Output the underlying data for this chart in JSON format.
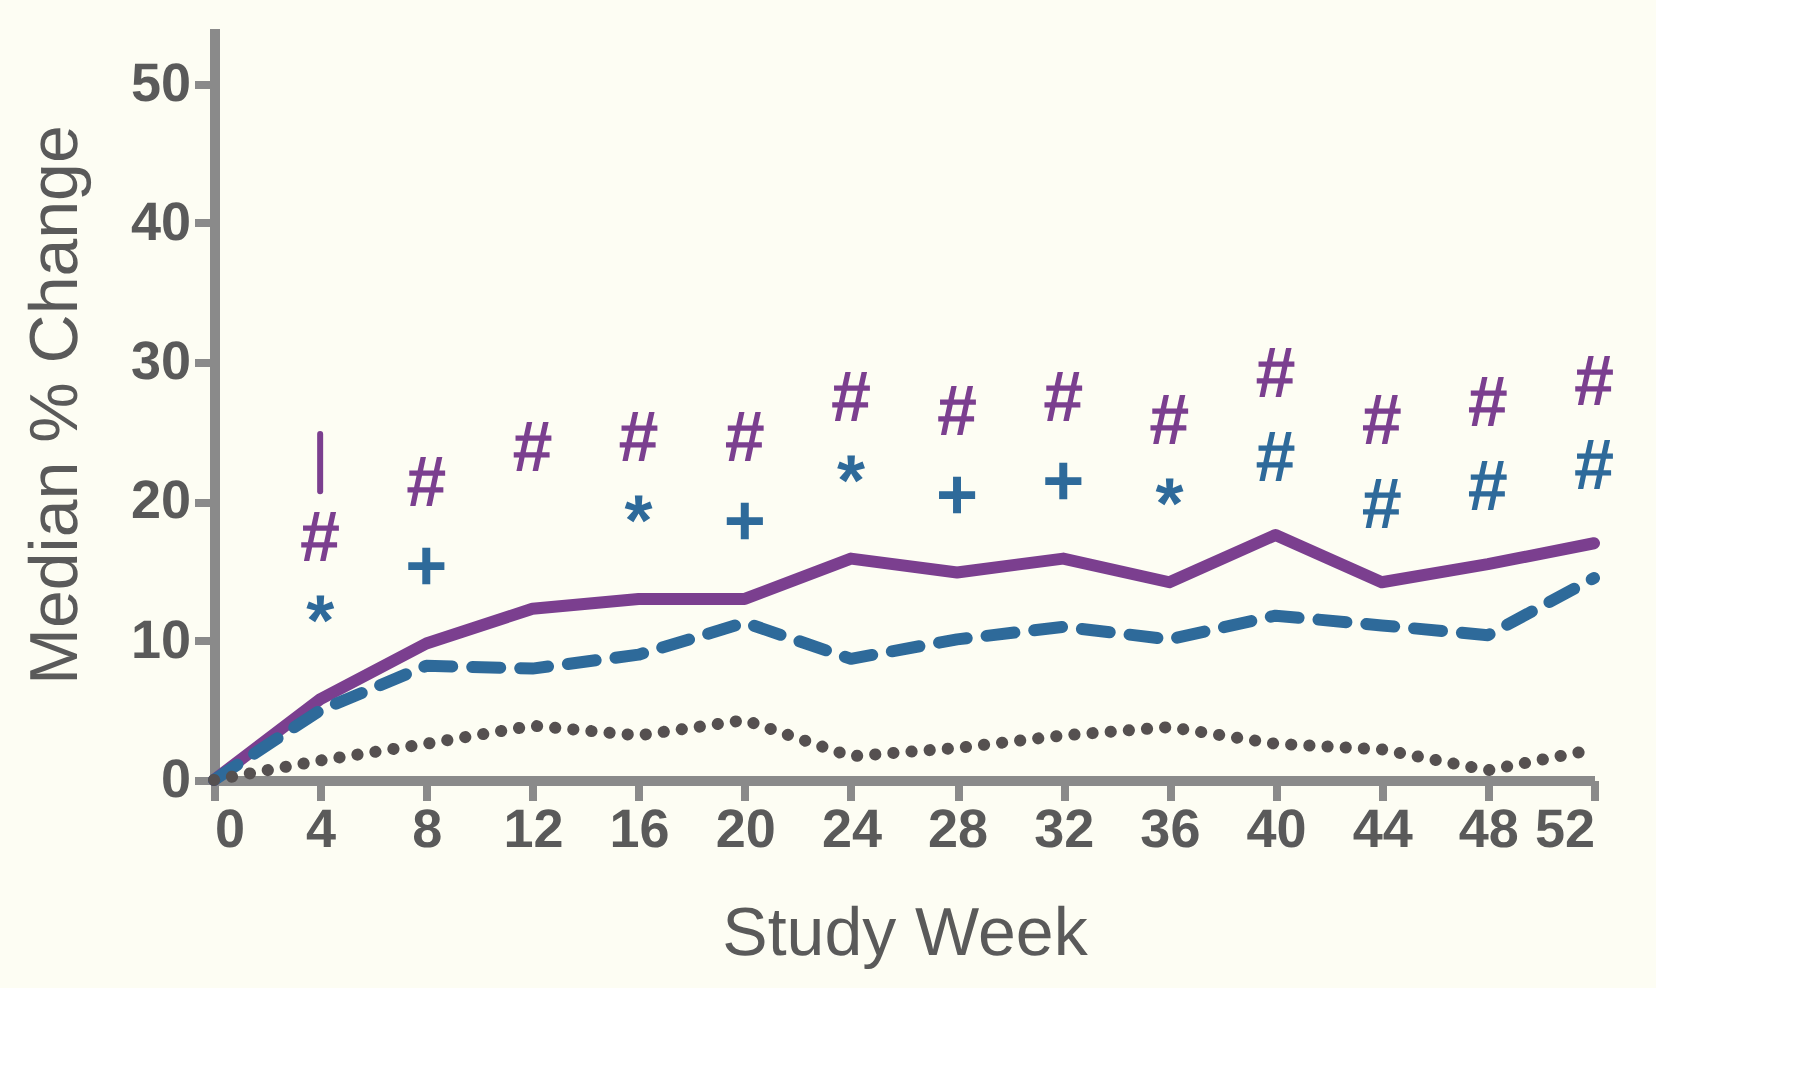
{
  "chart_data": {
    "type": "line",
    "xlabel": "Study Week",
    "ylabel": "Median % Change",
    "x": [
      0,
      4,
      8,
      12,
      16,
      20,
      24,
      28,
      32,
      36,
      40,
      44,
      48,
      52
    ],
    "xlim": [
      0,
      52
    ],
    "xticks": [
      0,
      4,
      8,
      12,
      16,
      20,
      24,
      28,
      32,
      36,
      40,
      44,
      48,
      52
    ],
    "ylim": [
      0,
      54
    ],
    "yticks": [
      0,
      10,
      20,
      30,
      40,
      50
    ],
    "grid": false,
    "legend": false,
    "marker": "none",
    "series": [
      {
        "color": "#7b3f8f",
        "line_style": "solid",
        "values": [
          0,
          5.8,
          9.8,
          12.3,
          13,
          13,
          15.9,
          14.9,
          15.9,
          14.2,
          17.6,
          14.2,
          15.5,
          17
        ]
      },
      {
        "color": "#2e6a9a",
        "line_style": "dashed",
        "values": [
          0,
          5,
          8.2,
          8,
          9,
          11.3,
          8.7,
          10.1,
          11,
          10.1,
          11.8,
          11.1,
          10.4,
          14.5
        ]
      },
      {
        "color": "#555050",
        "line_style": "dotted",
        "values": [
          0,
          1.4,
          2.6,
          3.9,
          3.2,
          4.3,
          1.7,
          2.3,
          3.2,
          3.8,
          2.6,
          2.2,
          0.7,
          2.2
        ]
      }
    ],
    "annotations": [
      {
        "text": "#",
        "x": 4,
        "y": 5.8
      },
      {
        "text": "#",
        "x": 8,
        "y": 9.8
      },
      {
        "text": "#",
        "x": 12,
        "y": 12.3
      },
      {
        "text": "#",
        "x": 16,
        "y": 13
      },
      {
        "text": "#",
        "x": 20,
        "y": 13
      },
      {
        "text": "#",
        "x": 24,
        "y": 15.9
      },
      {
        "text": "#",
        "x": 28,
        "y": 14.9
      },
      {
        "text": "#",
        "x": 32,
        "y": 15.9
      },
      {
        "text": "#",
        "x": 36,
        "y": 14.2
      },
      {
        "text": "#",
        "x": 40,
        "y": 17.6
      },
      {
        "text": "#",
        "x": 44,
        "y": 14.2
      },
      {
        "text": "#",
        "x": 48,
        "y": 15.5
      },
      {
        "text": "#",
        "x": 52,
        "y": 17
      },
      {
        "text": "#",
        "x": 40,
        "y": 11.8
      },
      {
        "text": "#",
        "x": 44,
        "y": 11.1
      },
      {
        "text": "#",
        "x": 48,
        "y": 10.4
      },
      {
        "text": "#",
        "x": 52,
        "y": 14.5
      },
      {
        "text": "*",
        "x": 4,
        "y": 5
      },
      {
        "text": "*",
        "x": 16,
        "y": 9
      },
      {
        "text": "*",
        "x": 24,
        "y": 8.7
      },
      {
        "text": "*",
        "x": 36,
        "y": 10.1
      },
      {
        "text": "+",
        "x": 8,
        "y": 8.2
      },
      {
        "text": "+",
        "x": 20,
        "y": 11.3
      },
      {
        "text": "+",
        "x": 28,
        "y": 10.1
      },
      {
        "text": "+",
        "x": 32,
        "y": 11
      }
    ]
  }
}
